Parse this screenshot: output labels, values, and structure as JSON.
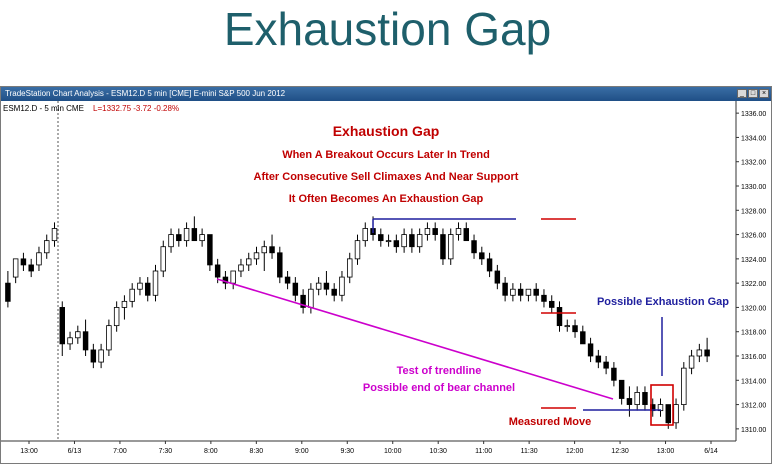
{
  "slide": {
    "title": "Exhaustion Gap"
  },
  "window": {
    "title": "TradeStation Chart Analysis - ESM12.D 5 min [CME] E-mini S&P 500 Jun 2012",
    "symbol": "ESM12.D - 5 min  CME",
    "last": "L=1332.75  -3.72  -0.28%"
  },
  "annotations": {
    "heading": "Exhaustion Gap",
    "line1": "When A Breakout Occurs Later In Trend",
    "line2": "After Consecutive Sell Climaxes And Near Support",
    "line3": "It Often Becomes An Exhaustion Gap",
    "possible_gap": "Possible Exhaustion Gap",
    "trend_test_1": "Test of trendline",
    "trend_test_2": "Possible end of bear channel",
    "measured_move": "Measured Move"
  },
  "colors": {
    "bull_candle": "#ffffff",
    "bear_candle": "#000000",
    "heading_red": "#c00000",
    "blue_line": "#1f1f9e",
    "magenta": "#cc00cc",
    "red_line": "#d00000"
  },
  "chart_data": {
    "type": "candlestick",
    "title": "Exhaustion Gap",
    "x_ticks": [
      "13:00",
      "6/13",
      "7:00",
      "7:30",
      "8:00",
      "8:30",
      "9:00",
      "9:30",
      "10:00",
      "10:30",
      "11:00",
      "11:30",
      "12:00",
      "12:30",
      "13:00",
      "6/14"
    ],
    "y_ticks": [
      "1336.00",
      "1334.00",
      "1332.00",
      "1330.00",
      "1328.00",
      "1326.00",
      "1324.00",
      "1322.00",
      "1320.00",
      "1318.00",
      "1316.00",
      "1314.00",
      "1312.00",
      "1310.00"
    ],
    "ylim": [
      1309,
      1337
    ],
    "candles": [
      [
        1322,
        1323,
        1320,
        1320.5
      ],
      [
        1322.5,
        1324,
        1322,
        1324
      ],
      [
        1324,
        1324.5,
        1323,
        1323.5
      ],
      [
        1323.5,
        1324,
        1322.5,
        1323
      ],
      [
        1323.5,
        1325,
        1323,
        1324.5
      ],
      [
        1324.5,
        1326,
        1324,
        1325.5
      ],
      [
        1325.5,
        1327,
        1325,
        1326.5
      ],
      [
        1320,
        1320.5,
        1316,
        1317
      ],
      [
        1317,
        1318,
        1316.5,
        1317.5
      ],
      [
        1317.5,
        1318.5,
        1317,
        1318
      ],
      [
        1318,
        1319,
        1316,
        1316.5
      ],
      [
        1316.5,
        1317,
        1315,
        1315.5
      ],
      [
        1315.5,
        1317,
        1315,
        1316.5
      ],
      [
        1316.5,
        1319,
        1316,
        1318.5
      ],
      [
        1318.5,
        1320.5,
        1318,
        1320
      ],
      [
        1320,
        1321,
        1319,
        1320.5
      ],
      [
        1320.5,
        1322,
        1320,
        1321.5
      ],
      [
        1321.5,
        1322.5,
        1321,
        1322
      ],
      [
        1322,
        1322.5,
        1320.5,
        1321
      ],
      [
        1321,
        1323.5,
        1320.5,
        1323
      ],
      [
        1323,
        1325.5,
        1322.5,
        1325
      ],
      [
        1325,
        1326.5,
        1324.5,
        1326
      ],
      [
        1326,
        1326.5,
        1325,
        1325.5
      ],
      [
        1325.5,
        1327,
        1325,
        1326.5
      ],
      [
        1326.5,
        1327.5,
        1325.5,
        1325.5
      ],
      [
        1325.5,
        1326.5,
        1325,
        1326
      ],
      [
        1326,
        1326,
        1323,
        1323.5
      ],
      [
        1323.5,
        1324,
        1322,
        1322.5
      ],
      [
        1322.5,
        1323,
        1321.5,
        1322
      ],
      [
        1322,
        1323,
        1321.5,
        1323
      ],
      [
        1323,
        1324,
        1322.5,
        1323.5
      ],
      [
        1323.5,
        1324.5,
        1323,
        1324
      ],
      [
        1324,
        1325,
        1323.5,
        1324.5
      ],
      [
        1324.5,
        1325.5,
        1323,
        1325
      ],
      [
        1325,
        1326,
        1324,
        1324.5
      ],
      [
        1324.5,
        1325,
        1322,
        1322.5
      ],
      [
        1322.5,
        1323,
        1321.5,
        1322
      ],
      [
        1322,
        1322.5,
        1320.5,
        1321
      ],
      [
        1321,
        1321.5,
        1319.5,
        1320
      ],
      [
        1320,
        1322,
        1319.5,
        1321.5
      ],
      [
        1321.5,
        1322.5,
        1321,
        1322
      ],
      [
        1322,
        1323,
        1321,
        1321.5
      ],
      [
        1321.5,
        1322,
        1320.5,
        1321
      ],
      [
        1321,
        1323,
        1320.5,
        1322.5
      ],
      [
        1322.5,
        1324.5,
        1322,
        1324
      ],
      [
        1324,
        1326,
        1323.5,
        1325.5
      ],
      [
        1325.5,
        1327,
        1325,
        1326.5
      ],
      [
        1326.5,
        1327.5,
        1325.5,
        1326
      ],
      [
        1326,
        1326.5,
        1325,
        1325.5
      ],
      [
        1325.5,
        1326,
        1325,
        1325.5
      ],
      [
        1325.5,
        1326,
        1324.5,
        1325
      ],
      [
        1325,
        1326.5,
        1324.5,
        1326
      ],
      [
        1326,
        1326.5,
        1324.5,
        1325
      ],
      [
        1325,
        1326.5,
        1324.5,
        1326
      ],
      [
        1326,
        1327,
        1325.5,
        1326.5
      ],
      [
        1326.5,
        1327,
        1325.5,
        1326
      ],
      [
        1326,
        1326.5,
        1323.5,
        1324
      ],
      [
        1324,
        1326.5,
        1323.5,
        1326
      ],
      [
        1326,
        1327,
        1325.5,
        1326.5
      ],
      [
        1326.5,
        1327,
        1325.5,
        1325.5
      ],
      [
        1325.5,
        1326,
        1324,
        1324.5
      ],
      [
        1324.5,
        1325,
        1323.5,
        1324
      ],
      [
        1324,
        1324.5,
        1322.5,
        1323
      ],
      [
        1323,
        1323.5,
        1321.5,
        1322
      ],
      [
        1322,
        1322.5,
        1320.5,
        1321
      ],
      [
        1321,
        1322,
        1320.5,
        1321.5
      ],
      [
        1321.5,
        1322,
        1320.5,
        1321
      ],
      [
        1321,
        1321.5,
        1320.5,
        1321.5
      ],
      [
        1321.5,
        1322,
        1320.5,
        1321
      ],
      [
        1321,
        1321.5,
        1320,
        1320.5
      ],
      [
        1320.5,
        1321,
        1319.5,
        1320
      ],
      [
        1320,
        1320.5,
        1318,
        1318.5
      ],
      [
        1318.5,
        1319,
        1318,
        1318.5
      ],
      [
        1318.5,
        1319,
        1317.5,
        1318
      ],
      [
        1318,
        1318.5,
        1317,
        1317
      ],
      [
        1317,
        1317.5,
        1315.5,
        1316
      ],
      [
        1316,
        1316.5,
        1315,
        1315.5
      ],
      [
        1315.5,
        1316,
        1314.5,
        1315
      ],
      [
        1315,
        1315.5,
        1313.5,
        1314
      ],
      [
        1314,
        1314,
        1312,
        1312.5
      ],
      [
        1312.5,
        1313.5,
        1311,
        1312
      ],
      [
        1312,
        1313.5,
        1311.5,
        1313
      ],
      [
        1313,
        1313.5,
        1311.5,
        1312
      ],
      [
        1312,
        1312.5,
        1311,
        1311.5
      ],
      [
        1311.5,
        1312.5,
        1311,
        1312
      ],
      [
        1312,
        1312,
        1310,
        1310.5
      ],
      [
        1310.5,
        1312.5,
        1310,
        1312
      ],
      [
        1312,
        1315.5,
        1311.5,
        1315
      ],
      [
        1315,
        1316.5,
        1314.5,
        1316
      ],
      [
        1316,
        1317,
        1315.5,
        1316.5
      ],
      [
        1316.5,
        1317.5,
        1315.5,
        1316
      ]
    ]
  }
}
